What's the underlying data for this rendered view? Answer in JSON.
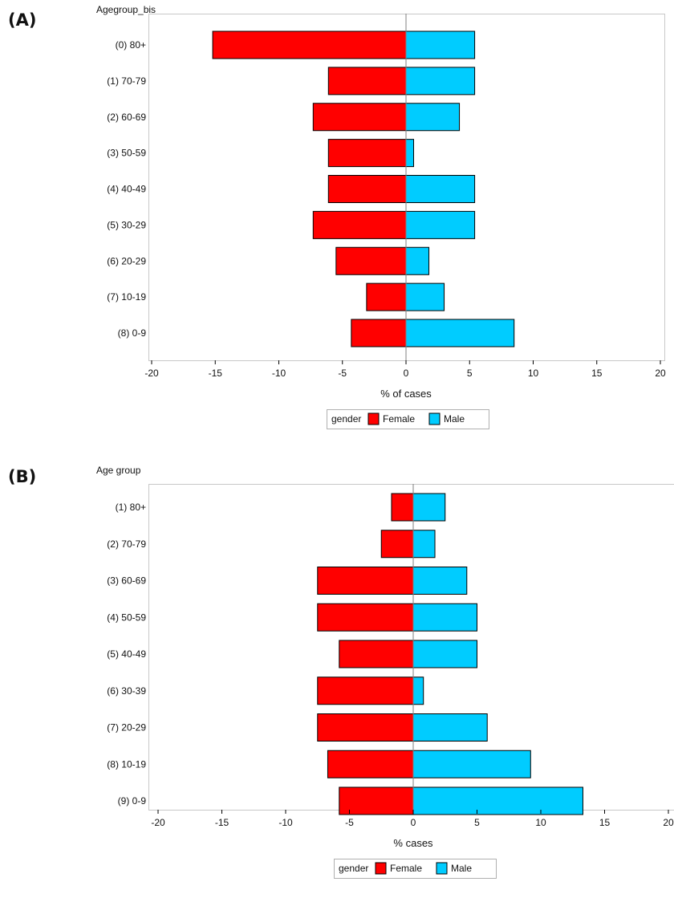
{
  "panels": [
    {
      "label": "(A)"
    },
    {
      "label": "(B)"
    }
  ],
  "colors": {
    "female": "#ff0000",
    "male": "#00ccff",
    "frame": "#c8c8c8",
    "zero_line": "#808080"
  },
  "chart_data": [
    {
      "type": "bar",
      "orientation": "horizontal",
      "title": "Agegroup_bis",
      "xlabel": "% of cases",
      "xlim": [
        -20,
        20
      ],
      "xticks": [
        -20,
        -15,
        -10,
        -5,
        0,
        5,
        10,
        15,
        20
      ],
      "grid": false,
      "legend_placement": "bottom-center",
      "legend_title": "gender",
      "categories": [
        "(0) 80+",
        "(1) 70-79",
        "(2) 60-69",
        "(3) 50-59",
        "(4) 40-49",
        "(5) 30-29",
        "(6) 20-29",
        "(7) 10-19",
        "(8) 0-9"
      ],
      "series": [
        {
          "name": "Female",
          "color": "#ff0000",
          "values": [
            -15.2,
            -6.1,
            -7.3,
            -6.1,
            -6.1,
            -7.3,
            -5.5,
            -3.1,
            -4.3
          ]
        },
        {
          "name": "Male",
          "color": "#00ccff",
          "values": [
            5.4,
            5.4,
            4.2,
            0.6,
            5.4,
            5.4,
            1.8,
            3.0,
            8.5
          ]
        }
      ]
    },
    {
      "type": "bar",
      "orientation": "horizontal",
      "title": "Age group",
      "xlabel": "% cases",
      "xlim": [
        -20,
        20
      ],
      "xticks": [
        -20,
        -15,
        -10,
        -5,
        0,
        5,
        10,
        15,
        20
      ],
      "grid": false,
      "legend_placement": "bottom-center",
      "legend_title": "gender",
      "categories": [
        "(1) 80+",
        "(2) 70-79",
        "(3) 60-69",
        "(4) 50-59",
        "(5) 40-49",
        "(6) 30-39",
        "(7) 20-29",
        "(8) 10-19",
        "(9) 0-9"
      ],
      "series": [
        {
          "name": "Female",
          "color": "#ff0000",
          "values": [
            -1.7,
            -2.5,
            -7.5,
            -7.5,
            -5.8,
            -7.5,
            -7.5,
            -6.7,
            -5.8
          ]
        },
        {
          "name": "Male",
          "color": "#00ccff",
          "values": [
            2.5,
            1.7,
            4.2,
            5.0,
            5.0,
            0.8,
            5.8,
            9.2,
            13.3
          ]
        }
      ]
    }
  ]
}
